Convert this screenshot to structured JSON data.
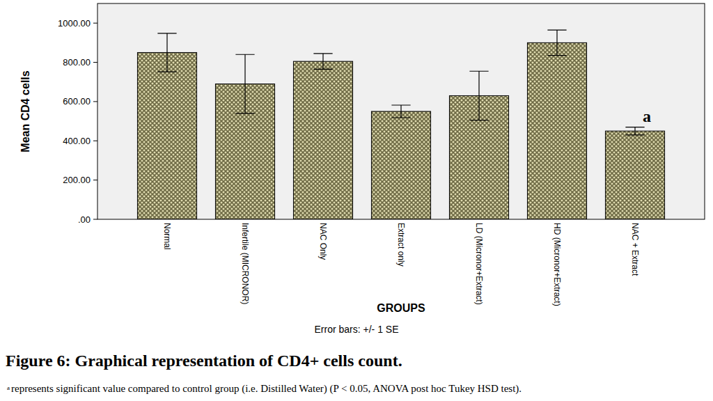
{
  "chart_data": {
    "type": "bar",
    "categories": [
      "Normal",
      "Infertile (MICRONOR)",
      "NAC Only",
      "Extract only",
      "LD (Micronor+Extract)",
      "HD (Micronor+Extract)",
      "NAC + Extract"
    ],
    "values": [
      850,
      690,
      805,
      550,
      630,
      900,
      450
    ],
    "errors": [
      98,
      150,
      40,
      32,
      125,
      65,
      20
    ],
    "color": "#6e6a45",
    "ylim": [
      0,
      1100
    ],
    "yticks": [
      {
        "value": 0,
        "label": ".00"
      },
      {
        "value": 200,
        "label": "200.00"
      },
      {
        "value": 400,
        "label": "400.00"
      },
      {
        "value": 600,
        "label": "600.00"
      },
      {
        "value": 800,
        "label": "800.00"
      },
      {
        "value": 1000,
        "label": "1000.00"
      }
    ],
    "grid": false,
    "y_label": "Mean CD4 cells",
    "x_label": "GROUPS",
    "error_bar_note": "Error bars: +/- 1 SE",
    "annotations": [
      {
        "text": "a",
        "category": "NAC + Extract"
      }
    ],
    "caption_title": "Figure 6: Graphical representation of CD4+ cells count.",
    "caption_marker": "a",
    "caption_note": "represents significant value compared to control group (i.e. Distilled Water) (P < 0.05, ANOVA post hoc Tukey HSD test)."
  }
}
